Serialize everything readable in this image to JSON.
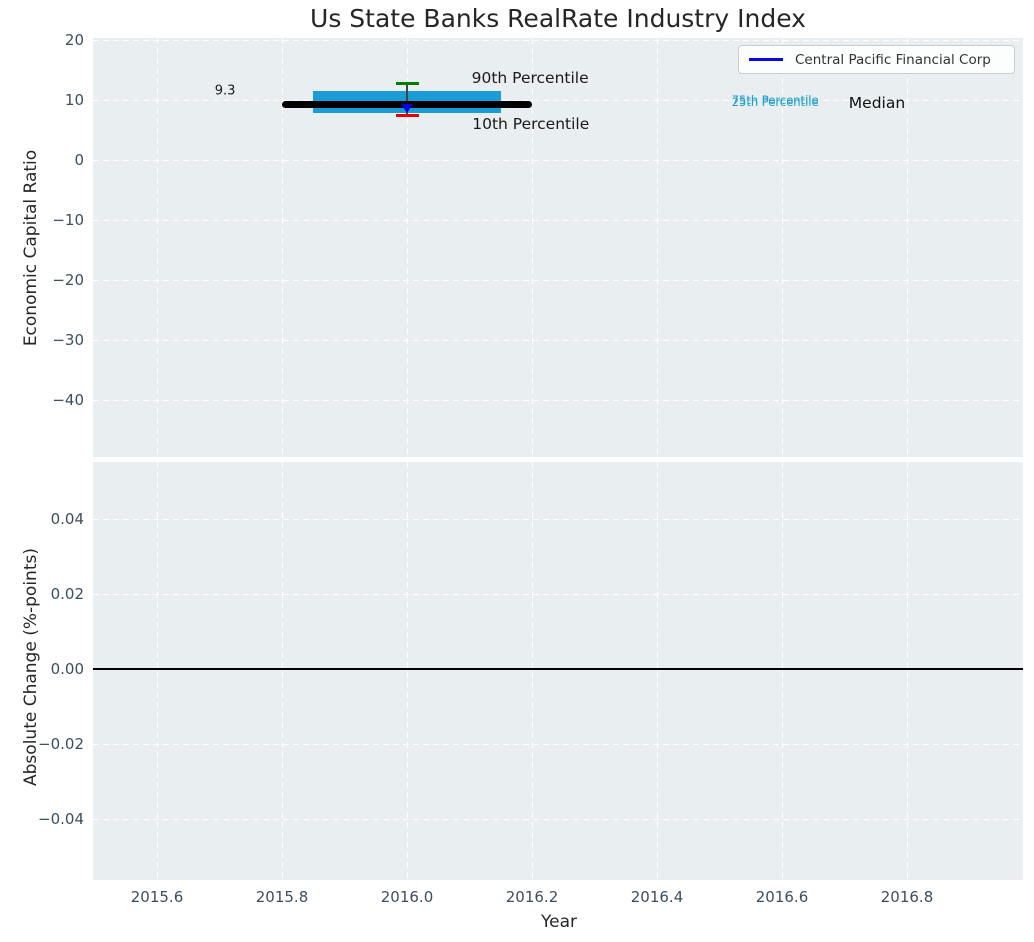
{
  "title": "Us State Banks RealRate Industry Index",
  "legend": {
    "label": "Central Pacific Financial Corp",
    "line_color": "#0a0ae0"
  },
  "colors": {
    "axes_bg": "#e9eef1",
    "grid": "#ffffff",
    "tick_label": "#3a4e61",
    "axis_label": "#262626",
    "title": "#262626"
  },
  "chart_data": [
    {
      "panel": "economic-capital-ratio",
      "type": "boxplot",
      "ylabel": "Economic Capital Ratio",
      "xlim": [
        2015.5,
        2016.99
      ],
      "ylim": [
        -49.8,
        20.3
      ],
      "grid": "white dashed",
      "ytick_values": [
        20,
        10,
        0,
        -10,
        -20,
        -30,
        -40
      ],
      "ytick_labels": [
        "20",
        "10",
        "0",
        "−10",
        "−20",
        "−30",
        "−40"
      ],
      "xtick_values": [
        2015.6,
        2015.8,
        2016.0,
        2016.2,
        2016.4,
        2016.6,
        2016.8
      ],
      "xtick_labels": [
        "2015.6",
        "2015.8",
        "2016.0",
        "2016.2",
        "2016.4",
        "2016.6",
        "2016.8"
      ],
      "box": {
        "x": 2016.0,
        "median": 9.3,
        "q1": 7.8,
        "q3": 11.5,
        "p10": 7.5,
        "p90": 12.7,
        "company_value": 8.7,
        "median_span_years": [
          2015.8,
          2016.2
        ],
        "box_span_years": [
          2015.85,
          2016.15
        ],
        "cap_half_width_years": 0.018,
        "colors": {
          "box": "#199cd8",
          "median_line": "#000000",
          "p90_cap": "#008000",
          "p10_cap": "#e60000",
          "whisker": "#444444",
          "company_marker": "#0000e8"
        }
      },
      "annotations": [
        {
          "text": "9.3",
          "x": 2015.709,
          "y": 11.5,
          "color": "#1a1a1a",
          "size": "md"
        },
        {
          "text": "90th Percentile",
          "x": 2016.197,
          "y": 13.7,
          "color": "#1a1a1a",
          "size": "lg"
        },
        {
          "text": "10th Percentile",
          "x": 2016.198,
          "y": 6.0,
          "color": "#1a1a1a",
          "size": "lg"
        },
        {
          "text": "75th Percentile",
          "x": 2016.589,
          "y": 10.0,
          "color": "#1f9ed2",
          "size": "sm"
        },
        {
          "text": "25th Percentile",
          "x": 2016.589,
          "y": 9.72,
          "color": "#1f9ed2",
          "size": "sm"
        },
        {
          "text": "Median",
          "x": 2016.752,
          "y": 9.5,
          "color": "#111111",
          "size": "lg"
        }
      ]
    },
    {
      "panel": "absolute-change",
      "type": "line",
      "ylabel": "Absolute Change (%-points)",
      "xlabel": "Year",
      "ylim": [
        -0.056,
        0.055
      ],
      "xlim": [
        2015.5,
        2016.99
      ],
      "grid": "white dashed",
      "ytick_values": [
        0.04,
        0.02,
        0.0,
        -0.02,
        -0.04
      ],
      "ytick_labels": [
        "0.04",
        "0.02",
        "0.00",
        "−0.02",
        "−0.04"
      ],
      "xtick_values": [
        2015.6,
        2015.8,
        2016.0,
        2016.2,
        2016.4,
        2016.6,
        2016.8
      ],
      "xtick_labels": [
        "2015.6",
        "2015.8",
        "2016.0",
        "2016.2",
        "2016.4",
        "2016.6",
        "2016.8"
      ],
      "zero_line": 0.0,
      "series": []
    }
  ]
}
